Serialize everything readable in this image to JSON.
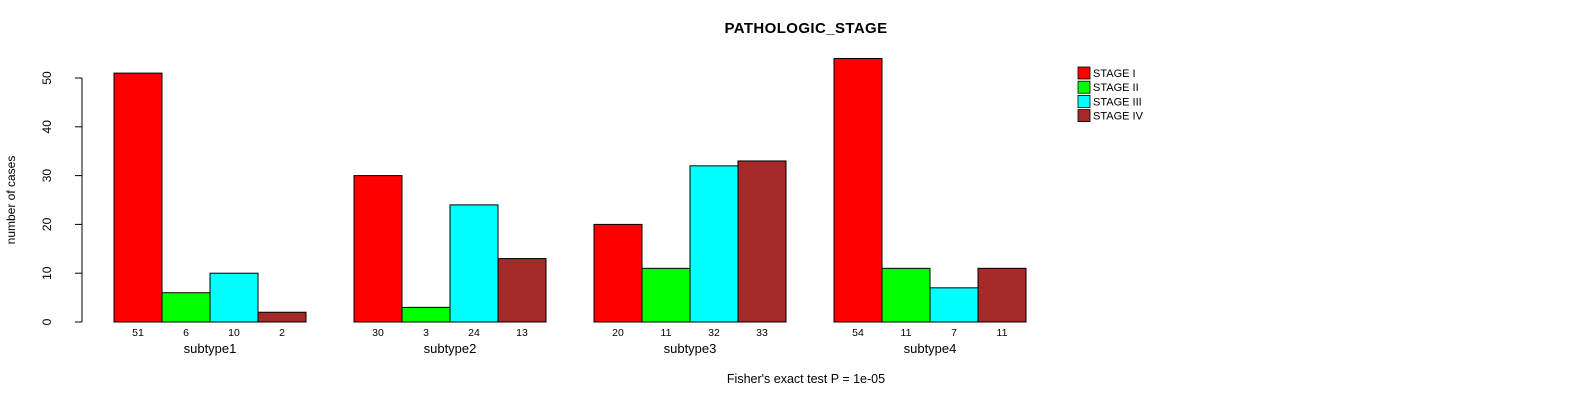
{
  "title": "PATHOLOGIC_STAGE",
  "footer": "Fisher's exact test P = 1e-05",
  "chart_data": {
    "type": "bar",
    "beside": true,
    "title": "PATHOLOGIC_STAGE",
    "xlabel": "",
    "ylabel": "number of cases",
    "categories": [
      "subtype1",
      "subtype2",
      "subtype3",
      "subtype4"
    ],
    "series": [
      {
        "name": "STAGE I",
        "color": "#FF0000",
        "values": [
          51,
          30,
          20,
          54
        ]
      },
      {
        "name": "STAGE II",
        "color": "#00FF00",
        "values": [
          6,
          3,
          11,
          11
        ]
      },
      {
        "name": "STAGE III",
        "color": "#00FFFF",
        "values": [
          10,
          24,
          32,
          7
        ]
      },
      {
        "name": "STAGE IV",
        "color": "#A52A2A",
        "values": [
          2,
          13,
          33,
          11
        ]
      }
    ],
    "bar_value_labels": [
      [
        51,
        6,
        10,
        2
      ],
      [
        30,
        3,
        24,
        13
      ],
      [
        20,
        11,
        32,
        33
      ],
      [
        54,
        11,
        7,
        11
      ]
    ],
    "annotation": "Fisher's exact test P = 1e-05",
    "ylim": [
      0,
      54
    ],
    "yticks": [
      0,
      10,
      20,
      30,
      40,
      50
    ],
    "grid": false,
    "legend_position": "top-right",
    "bar_border_color": "#000000",
    "axis_color": "#000000"
  }
}
